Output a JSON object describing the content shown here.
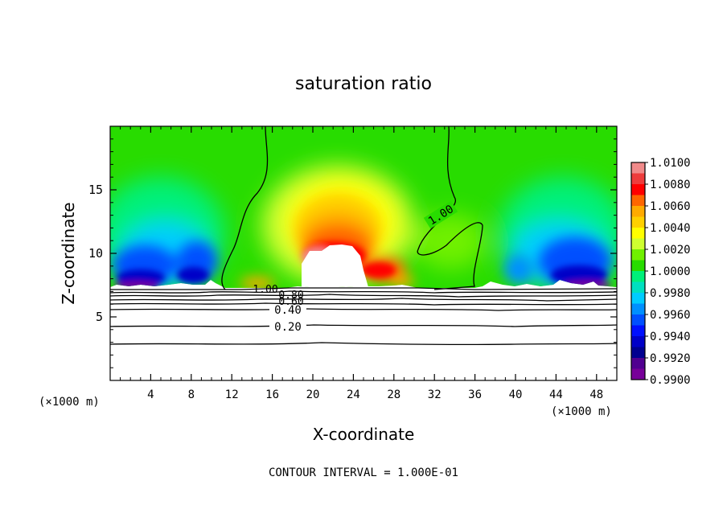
{
  "chart_data": {
    "type": "heatmap",
    "title": "saturation ratio",
    "xlabel": "X-coordinate",
    "ylabel": "Z-coordinate",
    "x_unit_label": "(×1000 m)",
    "x_unit_label_right": "(×1000 m)",
    "xlim": [
      0,
      50
    ],
    "ylim": [
      0,
      20
    ],
    "x_ticks": [
      4,
      8,
      12,
      16,
      20,
      24,
      28,
      32,
      36,
      40,
      44,
      48
    ],
    "y_ticks": [
      5,
      10,
      15
    ],
    "x_tick_labels": [
      "4",
      "8",
      "12",
      "16",
      "20",
      "24",
      "28",
      "32",
      "36",
      "40",
      "44",
      "48"
    ],
    "y_tick_labels": [
      "5",
      "10",
      "15"
    ],
    "colorbar": {
      "min": 0.99,
      "max": 1.01,
      "step": 0.001,
      "labels": [
        "1.0100",
        "1.0080",
        "1.0060",
        "1.0040",
        "1.0020",
        "1.0000",
        "0.9980",
        "0.9960",
        "0.9940",
        "0.9920",
        "0.9900"
      ],
      "colors": [
        "#f08a8a",
        "#ee3c3c",
        "#ff0000",
        "#ff6600",
        "#ffaa00",
        "#ffd000",
        "#ffff00",
        "#cfff30",
        "#70f000",
        "#28dc00",
        "#00f07a",
        "#00e0c0",
        "#00ccff",
        "#0090ff",
        "#0050ff",
        "#0010ff",
        "#0000c8",
        "#000090",
        "#500090",
        "#770099"
      ]
    },
    "contour_labels": [
      "1.00",
      "1.00",
      "0.80",
      "0.60",
      "0.40",
      "0.20"
    ],
    "contour_interval_text": "CONTOUR INTERVAL = 1.000E-01"
  }
}
